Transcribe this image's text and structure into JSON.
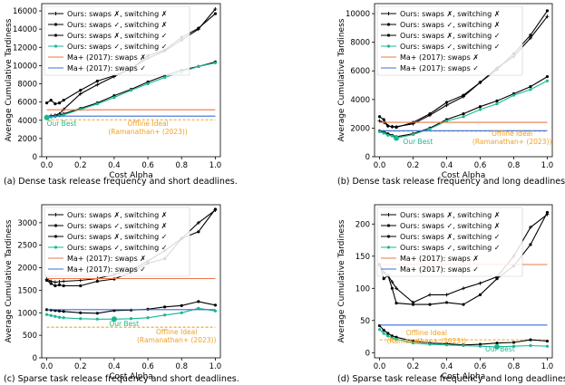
{
  "chart_data": [
    {
      "type": "line",
      "caption": "(a) Dense task release frequency and short deadlines.",
      "xlabel": "Cost Alpha",
      "ylabel": "Average Cumulative Tardiness",
      "xlim": [
        -0.03,
        1.03
      ],
      "ylim": [
        0,
        16800
      ],
      "xticks": [
        0.0,
        0.2,
        0.4,
        0.6,
        0.8,
        1.0
      ],
      "xtick_labels": [
        "0.0",
        "0.2",
        "0.4",
        "0.6",
        "0.8",
        "1.0"
      ],
      "yticks": [
        0,
        2000,
        4000,
        6000,
        8000,
        10000,
        12000,
        14000,
        16000
      ],
      "ytick_labels": [
        "0",
        "2000",
        "4000",
        "6000",
        "8000",
        "10000",
        "12000",
        "14000",
        "16000"
      ],
      "legend_position": "top-left",
      "series": [
        {
          "name": "Ours: swaps ✗, switching ✗",
          "color": "#000000",
          "marker": "plus",
          "x": [
            0,
            0.025,
            0.05,
            0.075,
            0.1,
            0.2,
            0.3,
            0.4,
            0.5,
            0.6,
            0.7,
            0.8,
            0.9,
            1.0
          ],
          "y": [
            4400,
            4500,
            4550,
            4700,
            5200,
            6900,
            7900,
            8800,
            9700,
            10800,
            11600,
            12800,
            14000,
            16200
          ]
        },
        {
          "name": "Ours: swaps ✓, switching ✗",
          "color": "#000000",
          "marker": "dot",
          "x": [
            0,
            0.025,
            0.05,
            0.075,
            0.1,
            0.2,
            0.3,
            0.4,
            0.5,
            0.6,
            0.7,
            0.8,
            0.9,
            1.0
          ],
          "y": [
            4350,
            4400,
            4450,
            4550,
            4700,
            5300,
            5900,
            6700,
            7400,
            8200,
            8900,
            9500,
            9900,
            10400
          ]
        },
        {
          "name": "Ours: swaps ✗, switching ✓",
          "color": "#000000",
          "marker": "dot",
          "x": [
            0,
            0.025,
            0.05,
            0.075,
            0.1,
            0.2,
            0.3,
            0.4,
            0.5,
            0.6,
            0.7,
            0.8,
            0.9,
            1.0
          ],
          "y": [
            5900,
            6200,
            5800,
            5900,
            6200,
            7300,
            8300,
            8900,
            9600,
            11100,
            11700,
            13100,
            14100,
            15700
          ]
        },
        {
          "name": "Ours: swaps ✓, switching ✓",
          "color": "#17b890",
          "marker": "dot",
          "x": [
            0,
            0.025,
            0.05,
            0.075,
            0.1,
            0.2,
            0.3,
            0.4,
            0.5,
            0.6,
            0.7,
            0.8,
            0.9,
            1.0
          ],
          "y": [
            4300,
            4350,
            4400,
            4500,
            4600,
            5200,
            5800,
            6500,
            7300,
            8000,
            8700,
            9300,
            9900,
            10300
          ]
        },
        {
          "name": "Ma+ (2017): swaps ✗",
          "color": "#e8794a",
          "marker": "none",
          "x": [
            0,
            1.0
          ],
          "y": [
            5150,
            5150
          ]
        },
        {
          "name": "Ma+ (2017): swaps ✓",
          "color": "#3b6fd4",
          "marker": "none",
          "x": [
            0,
            1.0
          ],
          "y": [
            4450,
            4450
          ]
        }
      ],
      "ideal": {
        "y": 4050,
        "color": "#f0a020",
        "label_lines": [
          "Offline Ideal",
          "(Ramanathan+ (2023))"
        ],
        "label_x": 0.6,
        "label_y": 3400
      },
      "best": {
        "x": 0.0,
        "y": 4300,
        "label": "Our Best",
        "label_x": 0.0,
        "label_y": 3400
      }
    },
    {
      "type": "line",
      "caption": "(b) Dense task release frequency and long deadlines.",
      "xlabel": "Cost Alpha",
      "ylabel": "Average Cumulative Tardiness",
      "xlim": [
        -0.03,
        1.03
      ],
      "ylim": [
        0,
        10700
      ],
      "xticks": [
        0.0,
        0.2,
        0.4,
        0.6,
        0.8,
        1.0
      ],
      "xtick_labels": [
        "0.0",
        "0.2",
        "0.4",
        "0.6",
        "0.8",
        "1.0"
      ],
      "yticks": [
        0,
        2000,
        4000,
        6000,
        8000,
        10000
      ],
      "ytick_labels": [
        "0",
        "2000",
        "4000",
        "6000",
        "8000",
        "10000"
      ],
      "legend_position": "top-left",
      "series": [
        {
          "name": "Ours: swaps ✗, switching ✗",
          "color": "#000000",
          "marker": "plus",
          "x": [
            0,
            0.025,
            0.05,
            0.075,
            0.1,
            0.2,
            0.3,
            0.4,
            0.5,
            0.6,
            0.7,
            0.8,
            0.9,
            1.0
          ],
          "y": [
            2500,
            2400,
            2150,
            2100,
            2100,
            2300,
            2900,
            3600,
            4200,
            5200,
            6200,
            7000,
            8300,
            9800
          ]
        },
        {
          "name": "Ours: swaps ✓, switching ✗",
          "color": "#000000",
          "marker": "dot",
          "x": [
            0,
            0.025,
            0.05,
            0.075,
            0.1,
            0.2,
            0.3,
            0.4,
            0.5,
            0.6,
            0.7,
            0.8,
            0.9,
            1.0
          ],
          "y": [
            1800,
            1750,
            1600,
            1500,
            1400,
            1600,
            2000,
            2600,
            3000,
            3500,
            3900,
            4400,
            4900,
            5600
          ]
        },
        {
          "name": "Ours: swaps ✗, switching ✓",
          "color": "#000000",
          "marker": "dot",
          "x": [
            0,
            0.025,
            0.05,
            0.075,
            0.1,
            0.2,
            0.3,
            0.4,
            0.5,
            0.6,
            0.7,
            0.8,
            0.9,
            1.0
          ],
          "y": [
            2800,
            2600,
            2150,
            2100,
            2050,
            2400,
            3000,
            3800,
            4300,
            5200,
            6100,
            7200,
            8500,
            10200
          ]
        },
        {
          "name": "Ours: swaps ✓, switching ✓",
          "color": "#17b890",
          "marker": "dot",
          "x": [
            0,
            0.025,
            0.05,
            0.075,
            0.1,
            0.2,
            0.3,
            0.4,
            0.5,
            0.6,
            0.7,
            0.8,
            0.9,
            1.0
          ],
          "y": [
            1750,
            1650,
            1500,
            1450,
            1300,
            1550,
            1950,
            2500,
            2800,
            3300,
            3700,
            4300,
            4700,
            5300
          ]
        },
        {
          "name": "Ma+ (2017): swaps ✗",
          "color": "#e8794a",
          "marker": "none",
          "x": [
            0,
            1.0
          ],
          "y": [
            2400,
            2400
          ]
        },
        {
          "name": "Ma+ (2017): swaps ✓",
          "color": "#3b6fd4",
          "marker": "none",
          "x": [
            0,
            1.0
          ],
          "y": [
            1820,
            1820
          ]
        }
      ],
      "ideal": {
        "y": 1780,
        "color": "#f0a020",
        "label_lines": [
          "Offline Ideal",
          "(Ramanathan+ (2023))"
        ],
        "label_x": 0.79,
        "label_y": 1450
      },
      "best": {
        "x": 0.1,
        "y": 1300,
        "label": "Our Best",
        "label_x": 0.14,
        "label_y": 900
      }
    },
    {
      "type": "line",
      "caption": "(c) Sparse task release frequency and short deadlines.",
      "xlabel": "Cost Alpha",
      "ylabel": "Average Cumulative Tardiness",
      "xlim": [
        -0.03,
        1.03
      ],
      "ylim": [
        0,
        3400
      ],
      "xticks": [
        0.0,
        0.2,
        0.4,
        0.6,
        0.8,
        1.0
      ],
      "xtick_labels": [
        "0.0",
        "0.2",
        "0.4",
        "0.6",
        "0.8",
        "1.0"
      ],
      "yticks": [
        0,
        500,
        1000,
        1500,
        2000,
        2500,
        3000
      ],
      "ytick_labels": [
        "0",
        "500",
        "1000",
        "1500",
        "2000",
        "2500",
        "3000"
      ],
      "legend_position": "top-left",
      "series": [
        {
          "name": "Ours: swaps ✗, switching ✗",
          "color": "#000000",
          "marker": "plus",
          "x": [
            0,
            0.025,
            0.05,
            0.075,
            0.1,
            0.2,
            0.3,
            0.4,
            0.5,
            0.6,
            0.7,
            0.8,
            0.9,
            1.0
          ],
          "y": [
            1750,
            1700,
            1680,
            1690,
            1700,
            1720,
            1760,
            1850,
            1950,
            2150,
            2380,
            2650,
            3000,
            3280
          ]
        },
        {
          "name": "Ours: swaps ✓, switching ✗",
          "color": "#000000",
          "marker": "dot",
          "x": [
            0,
            0.025,
            0.05,
            0.075,
            0.1,
            0.2,
            0.3,
            0.4,
            0.5,
            0.6,
            0.7,
            0.8,
            0.9,
            1.0
          ],
          "y": [
            1070,
            1060,
            1050,
            1040,
            1030,
            1000,
            990,
            1050,
            1060,
            1080,
            1130,
            1160,
            1250,
            1170
          ]
        },
        {
          "name": "Ours: swaps ✗, switching ✓",
          "color": "#000000",
          "marker": "dot",
          "x": [
            0,
            0.025,
            0.05,
            0.075,
            0.1,
            0.2,
            0.3,
            0.4,
            0.5,
            0.6,
            0.7,
            0.8,
            0.9,
            1.0
          ],
          "y": [
            1720,
            1650,
            1600,
            1620,
            1600,
            1600,
            1700,
            1750,
            1900,
            2100,
            2200,
            2650,
            2800,
            3300
          ]
        },
        {
          "name": "Ours: swaps ✓, switching ✓",
          "color": "#17b890",
          "marker": "dot",
          "x": [
            0,
            0.025,
            0.05,
            0.075,
            0.1,
            0.2,
            0.3,
            0.4,
            0.5,
            0.6,
            0.7,
            0.8,
            0.9,
            1.0
          ],
          "y": [
            960,
            940,
            920,
            900,
            890,
            870,
            860,
            860,
            870,
            890,
            950,
            1000,
            1100,
            1040
          ]
        },
        {
          "name": "Ma+ (2017): swaps ✗",
          "color": "#e8794a",
          "marker": "none",
          "x": [
            0,
            1.0
          ],
          "y": [
            1760,
            1760
          ]
        },
        {
          "name": "Ma+ (2017): swaps ✓",
          "color": "#3b6fd4",
          "marker": "none",
          "x": [
            0,
            1.0
          ],
          "y": [
            1070,
            1070
          ]
        }
      ],
      "ideal": {
        "y": 680,
        "color": "#f0a020",
        "label_lines": [
          "Offline Ideal",
          "(Ramanathan+ (2023))"
        ],
        "label_x": 0.77,
        "label_y": 520
      },
      "best": {
        "x": 0.4,
        "y": 860,
        "label": "Our Best",
        "label_x": 0.37,
        "label_y": 700
      }
    },
    {
      "type": "line",
      "caption": "(d) Sparse task release frequency and long deadlines.",
      "xlabel": "Cost Alpha",
      "ylabel": "Average Cumulative Tardiness",
      "xlim": [
        -0.03,
        1.03
      ],
      "ylim": [
        -8,
        230
      ],
      "xticks": [
        0.0,
        0.2,
        0.4,
        0.6,
        0.8,
        1.0
      ],
      "xtick_labels": [
        "0.0",
        "0.2",
        "0.4",
        "0.6",
        "0.8",
        "1.0"
      ],
      "yticks": [
        0,
        50,
        100,
        150,
        200
      ],
      "ytick_labels": [
        "0",
        "50",
        "100",
        "150",
        "200"
      ],
      "legend_position": "top-left",
      "series": [
        {
          "name": "Ours: swaps ✗, switching ✗",
          "color": "#000000",
          "marker": "plus",
          "x": [
            0,
            0.025,
            0.05,
            0.075,
            0.1,
            0.2,
            0.3,
            0.4,
            0.5,
            0.6,
            0.7,
            0.8,
            0.9,
            1.0
          ],
          "y": [
            137,
            125,
            120,
            110,
            100,
            78,
            90,
            90,
            100,
            108,
            118,
            150,
            195,
            215
          ]
        },
        {
          "name": "Ours: swaps ✓, switching ✗",
          "color": "#000000",
          "marker": "dot",
          "x": [
            0,
            0.025,
            0.05,
            0.075,
            0.1,
            0.2,
            0.3,
            0.4,
            0.5,
            0.6,
            0.7,
            0.8,
            0.9,
            1.0
          ],
          "y": [
            42,
            35,
            30,
            26,
            24,
            18,
            15,
            14,
            12,
            13,
            15,
            16,
            20,
            18
          ]
        },
        {
          "name": "Ours: swaps ✗, switching ✓",
          "color": "#000000",
          "marker": "dot",
          "x": [
            0,
            0.025,
            0.05,
            0.075,
            0.1,
            0.2,
            0.3,
            0.4,
            0.5,
            0.6,
            0.7,
            0.8,
            0.9,
            1.0
          ],
          "y": [
            137,
            115,
            120,
            100,
            77,
            75,
            75,
            78,
            75,
            90,
            115,
            135,
            168,
            218
          ]
        },
        {
          "name": "Ours: swaps ✓, switching ✓",
          "color": "#17b890",
          "marker": "dot",
          "x": [
            0,
            0.025,
            0.05,
            0.075,
            0.1,
            0.2,
            0.3,
            0.4,
            0.5,
            0.6,
            0.7,
            0.8,
            0.9,
            1.0
          ],
          "y": [
            36,
            30,
            26,
            23,
            21,
            15,
            13,
            12,
            11,
            10,
            9,
            10,
            11,
            10
          ]
        },
        {
          "name": "Ma+ (2017): swaps ✗",
          "color": "#e8794a",
          "marker": "none",
          "x": [
            0,
            1.0
          ],
          "y": [
            137,
            137
          ]
        },
        {
          "name": "Ma+ (2017): swaps ✓",
          "color": "#3b6fd4",
          "marker": "none",
          "x": [
            0,
            1.0
          ],
          "y": [
            43,
            43
          ]
        }
      ],
      "ideal": {
        "y": 20,
        "color": "#f0a020",
        "label_lines": [
          "Offline Ideal",
          "(Ramanathan+ (2023))"
        ],
        "label_x": 0.28,
        "label_y": 27
      },
      "best": {
        "x": 0.7,
        "y": 9,
        "label": "Our Best",
        "label_x": 0.63,
        "label_y": 2
      }
    }
  ]
}
